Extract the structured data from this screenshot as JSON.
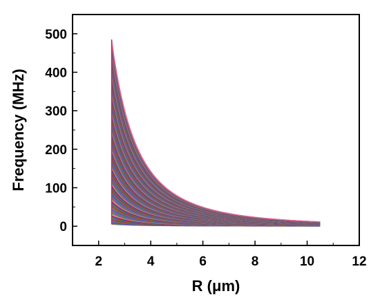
{
  "chart_data": {
    "type": "line",
    "title": "",
    "xlabel": "R (μm)",
    "ylabel": "Frequency (MHz)",
    "xlim": [
      1,
      12
    ],
    "ylim": [
      -50,
      550
    ],
    "x_ticks": [
      2,
      4,
      6,
      8,
      10,
      12
    ],
    "y_ticks": [
      0,
      100,
      200,
      300,
      400,
      500
    ],
    "grid": false,
    "legend": "none",
    "series_family": {
      "description_of_curves": "many overlapping decaying curves from R=2.5 to R=10.5",
      "x_start": 2.5,
      "x_end": 10.5,
      "max_start_value": 485,
      "min_start_value": 5,
      "curve_count": 160,
      "decay_exponent": 2.6
    },
    "colors": [
      "#e23b5a",
      "#2f9e44",
      "#3b5bdb",
      "#9c36b5",
      "#0c8599",
      "#e8590c",
      "#495057",
      "#c2255c",
      "#5c940d",
      "#1864ab",
      "#862e9c",
      "#a61e4d",
      "#f783ac",
      "#66a80f",
      "#4263eb"
    ]
  }
}
